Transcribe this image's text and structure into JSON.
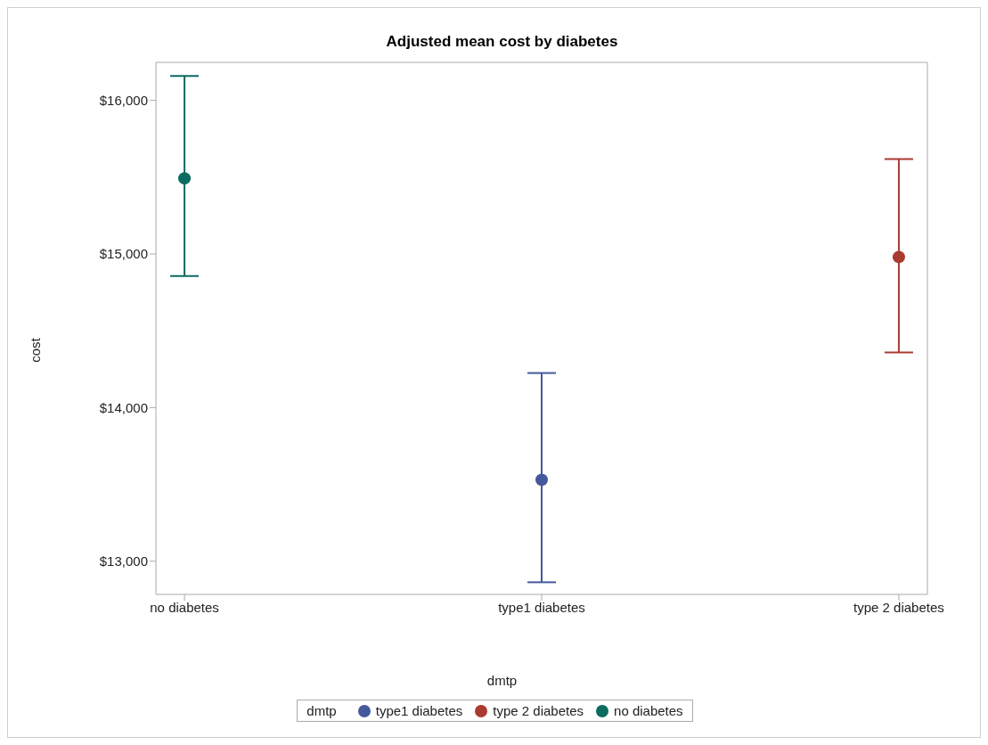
{
  "chart_data": {
    "type": "scatter",
    "title": "Adjusted mean cost by diabetes",
    "xlabel": "dmtp",
    "ylabel": "cost",
    "legend_title": "dmtp",
    "legend": "bottom",
    "marker": "circle",
    "grid": false,
    "categories": [
      "no diabetes",
      "type1 diabetes",
      "type 2 diabetes"
    ],
    "ylim": [
      12784,
      16247
    ],
    "yticks": [
      {
        "value": 13000,
        "label": "$13,000"
      },
      {
        "value": 14000,
        "label": "$14,000"
      },
      {
        "value": 15000,
        "label": "$15,000"
      },
      {
        "value": 16000,
        "label": "$16,000"
      }
    ],
    "series": [
      {
        "name": "type1 diabetes",
        "color": "#45589c",
        "values": [
          null,
          13530,
          null
        ],
        "errors": [
          null,
          [
            12863,
            14225
          ],
          null
        ]
      },
      {
        "name": "type 2 diabetes",
        "color": "#aa3b30",
        "values": [
          null,
          null,
          14980
        ],
        "errors": [
          null,
          null,
          [
            14359,
            15618
          ]
        ]
      },
      {
        "name": "no diabetes",
        "color": "#0b6b5e",
        "values": [
          15492,
          null,
          null
        ],
        "errors": [
          [
            14857,
            16159
          ],
          null,
          null
        ]
      }
    ]
  }
}
